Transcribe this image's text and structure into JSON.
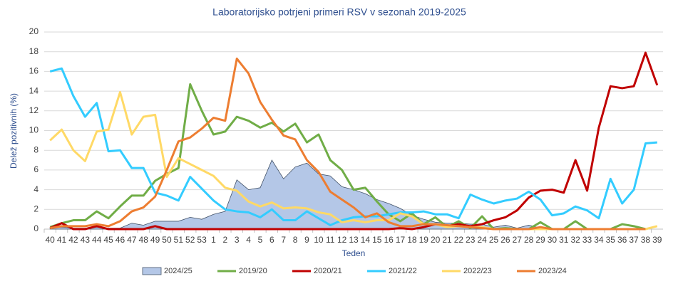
{
  "chart_data": {
    "type": "line",
    "title": "Laboratorijsko potrjeni primeri RSV v sezonah 2019-2025",
    "x_label": "Teden",
    "y_label": "Delež pozitivnih (%)",
    "categories": [
      "40",
      "41",
      "42",
      "43",
      "44",
      "45",
      "46",
      "47",
      "48",
      "49",
      "50",
      "51",
      "52",
      "53",
      "1",
      "2",
      "3",
      "4",
      "5",
      "6",
      "7",
      "8",
      "9",
      "10",
      "11",
      "12",
      "13",
      "14",
      "15",
      "16",
      "17",
      "18",
      "19",
      "20",
      "21",
      "22",
      "23",
      "24",
      "25",
      "26",
      "27",
      "28",
      "29",
      "30",
      "31",
      "32",
      "33",
      "34",
      "35",
      "36",
      "37",
      "38",
      "39"
    ],
    "ylim": [
      0,
      20
    ],
    "yticks": [
      0,
      2,
      4,
      6,
      8,
      10,
      12,
      14,
      16,
      18,
      20
    ],
    "grid": true,
    "legend": "bottom",
    "series": [
      {
        "name": "2024/25",
        "kind": "area",
        "color": "#b4c7e7",
        "values": [
          0.1,
          0.2,
          0.1,
          0.1,
          0.2,
          0.1,
          0.1,
          0.6,
          0.4,
          0.8,
          0.8,
          0.8,
          1.2,
          1.0,
          1.5,
          1.8,
          5.0,
          4.0,
          4.2,
          7.0,
          5.1,
          6.3,
          6.7,
          5.6,
          5.4,
          4.3,
          4.0,
          3.6,
          3.0,
          2.6,
          2.1,
          1.4,
          1.0,
          0.7,
          0.6,
          0.6,
          0.5,
          0.5,
          0.2,
          0.4,
          0.1,
          0.4,
          0.1,
          0.1,
          null,
          null,
          null,
          null,
          null,
          null,
          null,
          null,
          null
        ]
      },
      {
        "name": "2019/20",
        "color": "#70ad47",
        "values": [
          0.2,
          0.6,
          0.9,
          0.9,
          1.8,
          1.1,
          2.3,
          3.4,
          3.4,
          4.9,
          5.6,
          6.2,
          14.7,
          12.0,
          9.6,
          9.9,
          11.4,
          11.0,
          10.3,
          10.8,
          9.9,
          10.7,
          8.8,
          9.6,
          7.0,
          6.0,
          4.0,
          4.2,
          2.8,
          1.5,
          0.8,
          1.6,
          0.5,
          1.2,
          0.2,
          0.8,
          0.1,
          1.3,
          0,
          0.1,
          0,
          0,
          0.7,
          0,
          0,
          0.8,
          0,
          0,
          0,
          0.5,
          0.3,
          0,
          null
        ]
      },
      {
        "name": "2020/21",
        "color": "#c00000",
        "values": [
          0.1,
          0.6,
          0,
          0,
          0.3,
          0,
          0,
          0,
          0,
          0.3,
          0,
          0,
          0,
          0,
          0,
          0,
          0,
          0,
          0,
          0,
          0,
          0,
          0,
          0,
          0,
          0,
          0,
          0,
          0,
          0,
          0.1,
          0,
          0.2,
          0.5,
          0.3,
          0.5,
          0.3,
          0.5,
          0.9,
          1.2,
          1.9,
          3.2,
          3.9,
          4.0,
          3.7,
          7.0,
          3.9,
          10.3,
          14.5,
          14.3,
          14.5,
          17.9,
          14.6
        ]
      },
      {
        "name": "2021/22",
        "color": "#33ccff",
        "values": [
          16.0,
          16.3,
          13.5,
          11.4,
          12.8,
          7.9,
          8.0,
          6.2,
          6.2,
          3.7,
          3.4,
          2.9,
          5.3,
          4.1,
          2.9,
          2.0,
          1.8,
          1.7,
          1.2,
          2.0,
          0.9,
          0.9,
          1.8,
          1.1,
          0.4,
          0.9,
          1.2,
          1.3,
          1.3,
          1.5,
          1.7,
          1.7,
          1.8,
          1.5,
          1.5,
          1.1,
          3.5,
          3.0,
          2.6,
          2.9,
          3.1,
          3.8,
          3.0,
          1.4,
          1.6,
          2.3,
          1.9,
          1.1,
          5.1,
          2.6,
          4.0,
          8.7,
          8.8
        ]
      },
      {
        "name": "2022/23",
        "color": "#ffd966",
        "values": [
          9.0,
          10.1,
          8.0,
          6.9,
          9.9,
          10.1,
          13.9,
          9.6,
          11.4,
          11.6,
          5.3,
          7.2,
          6.6,
          6.0,
          5.4,
          4.2,
          3.9,
          2.8,
          2.3,
          2.7,
          2.1,
          2.2,
          2.1,
          1.7,
          1.5,
          0.7,
          0.9,
          0.7,
          0.9,
          0.9,
          1.6,
          1.3,
          0.5,
          0.5,
          0.2,
          0.3,
          0.2,
          0.2,
          0,
          0,
          0,
          0,
          0,
          0,
          0,
          0,
          0,
          0,
          0,
          0,
          0,
          0,
          0.3
        ]
      },
      {
        "name": "2023/24",
        "color": "#ed7d31",
        "values": [
          0.1,
          0.3,
          0.3,
          0.3,
          0.5,
          0.3,
          0.8,
          1.8,
          2.2,
          3.3,
          6.0,
          8.9,
          9.3,
          10.2,
          11.3,
          11.0,
          17.3,
          15.8,
          12.9,
          11.1,
          9.5,
          9.1,
          7.0,
          5.8,
          3.8,
          3.0,
          2.2,
          1.2,
          1.6,
          0.7,
          0.3,
          0.3,
          0.5,
          0.5,
          0.4,
          0.3,
          0.2,
          0.1,
          0,
          0,
          0,
          0,
          0.2,
          0,
          0,
          0,
          0,
          0,
          0,
          0,
          0,
          0,
          null
        ]
      }
    ]
  }
}
